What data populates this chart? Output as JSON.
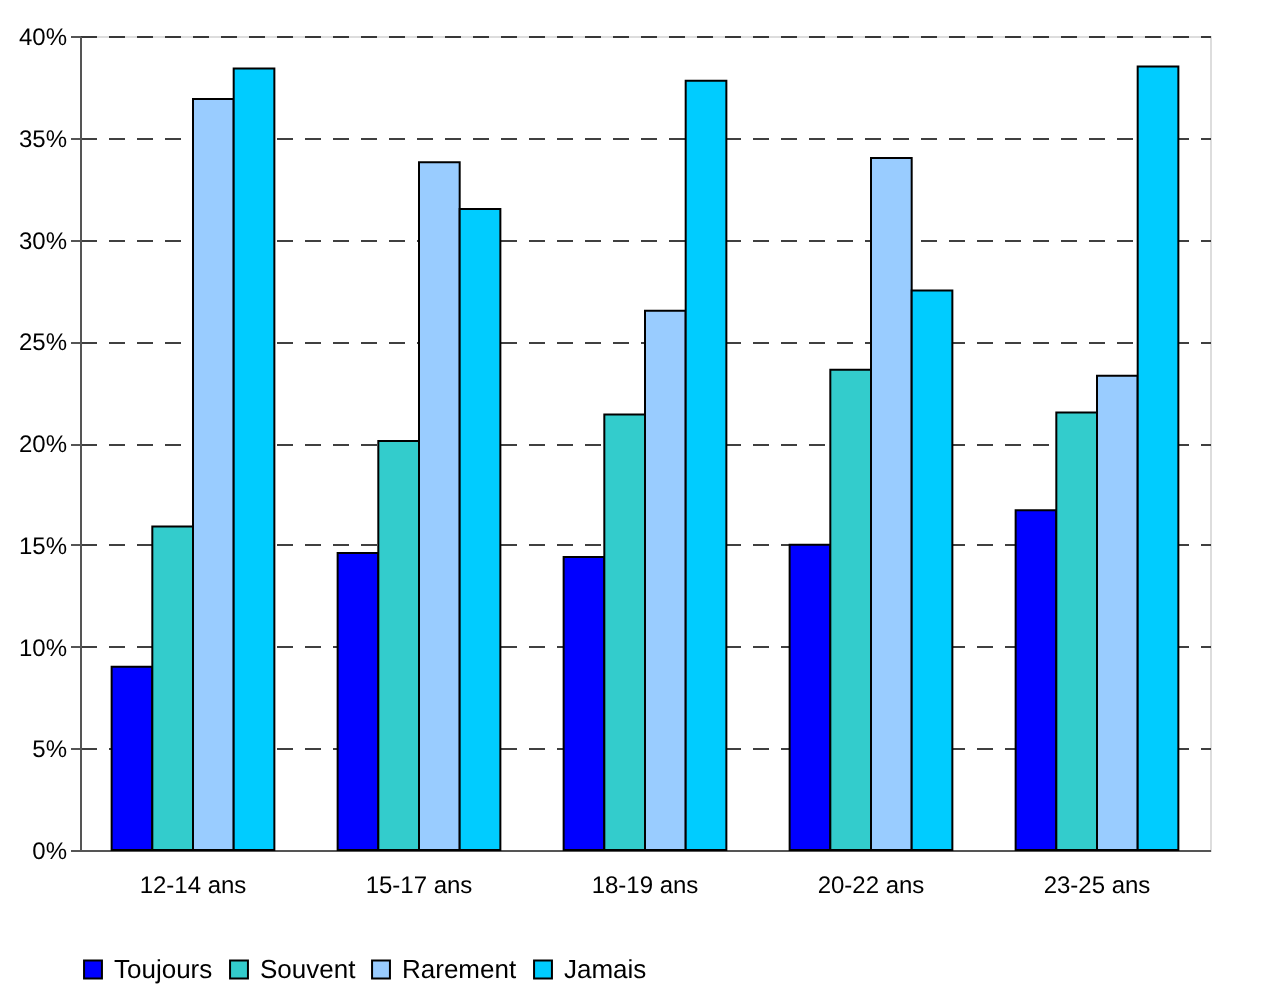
{
  "chart_data": {
    "type": "bar",
    "categories": [
      "12-14 ans",
      "15-17 ans",
      "18-19 ans",
      "20-22 ans",
      "23-25 ans"
    ],
    "series": [
      {
        "name": "Toujours",
        "color": "#0000ff",
        "values": [
          9.0,
          14.6,
          14.4,
          15.0,
          16.7
        ]
      },
      {
        "name": "Souvent",
        "color": "#33cccc",
        "values": [
          15.9,
          20.1,
          21.4,
          23.6,
          21.5
        ]
      },
      {
        "name": "Rarement",
        "color": "#99ccff",
        "values": [
          36.9,
          33.8,
          26.5,
          34.0,
          23.3
        ]
      },
      {
        "name": "Jamais",
        "color": "#00ccff",
        "values": [
          38.4,
          31.5,
          37.8,
          27.5,
          38.5
        ]
      }
    ],
    "ylim": [
      0,
      40
    ],
    "yticks": [
      {
        "value": 0,
        "label": "0%"
      },
      {
        "value": 5,
        "label": "5%"
      },
      {
        "value": 10,
        "label": "10%"
      },
      {
        "value": 15,
        "label": "15%"
      },
      {
        "value": 20,
        "label": "20%"
      },
      {
        "value": 25,
        "label": "25%"
      },
      {
        "value": 30,
        "label": "30%"
      },
      {
        "value": 35,
        "label": "35%"
      },
      {
        "value": 40,
        "label": "40%"
      }
    ],
    "grid": "y",
    "legend": "bottom"
  }
}
